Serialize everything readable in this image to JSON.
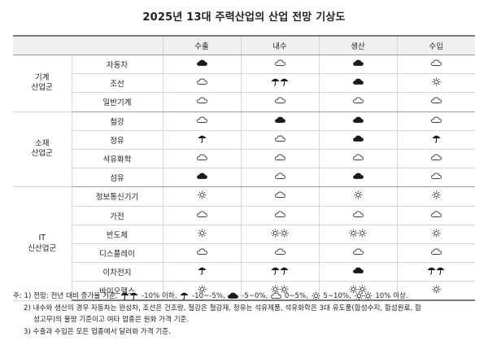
{
  "title": "2025년 13대 주력산업의 산업 전망 기상도",
  "columns": [
    "수출",
    "내수",
    "생산",
    "수입"
  ],
  "groups": [
    {
      "label_lines": [
        "기계",
        "산업군"
      ],
      "rows": [
        {
          "name": "자동차",
          "values": [
            "cloud_dark",
            "cloud",
            "cloud_dark",
            "cloud"
          ]
        },
        {
          "name": "조선",
          "values": [
            "cloud",
            "umbrella2",
            "cloud_dark",
            "sun"
          ]
        },
        {
          "name": "일반기계",
          "values": [
            "cloud",
            "cloud",
            "cloud",
            "cloud"
          ]
        }
      ]
    },
    {
      "label_lines": [
        "소재",
        "산업군"
      ],
      "rows": [
        {
          "name": "철강",
          "values": [
            "cloud",
            "cloud_dark",
            "cloud_dark",
            "cloud"
          ]
        },
        {
          "name": "정유",
          "values": [
            "umbrella",
            "cloud",
            "cloud_dark",
            "umbrella"
          ]
        },
        {
          "name": "석유화학",
          "values": [
            "cloud",
            "cloud",
            "cloud",
            "cloud"
          ]
        },
        {
          "name": "섬유",
          "values": [
            "cloud_dark",
            "cloud",
            "cloud_dark",
            "cloud"
          ]
        }
      ]
    },
    {
      "label_lines": [
        "IT",
        "신산업군"
      ],
      "rows": [
        {
          "name": "정보통신기기",
          "values": [
            "sun",
            "cloud",
            "sun",
            "sun"
          ]
        },
        {
          "name": "가전",
          "values": [
            "cloud",
            "cloud",
            "cloud",
            "cloud"
          ]
        },
        {
          "name": "반도체",
          "values": [
            "sun",
            "sun2",
            "sun2",
            "sun"
          ]
        },
        {
          "name": "디스플레이",
          "values": [
            "cloud",
            "cloud",
            "cloud",
            "cloud"
          ]
        },
        {
          "name": "이차전지",
          "values": [
            "umbrella",
            "umbrella2",
            "cloud_dark",
            "umbrella2"
          ]
        },
        {
          "name": "바이오헬스",
          "values": [
            "sun",
            "sun2",
            "sun2",
            "sun"
          ]
        }
      ]
    }
  ],
  "notes": {
    "note1_prefix": "주: 1) 전망: 전년 대비 증가율 기준,",
    "legend": [
      {
        "symbol": "umbrella2",
        "text": "-10% 이하,"
      },
      {
        "symbol": "umbrella",
        "text": "-10~-5%,"
      },
      {
        "symbol": "cloud_dark",
        "text": "-5~0%,"
      },
      {
        "symbol": "cloud",
        "text": "0~5%,"
      },
      {
        "symbol": "sun",
        "text": "5~10%,"
      },
      {
        "symbol": "sun2",
        "text": "10% 이상."
      }
    ],
    "note2_line1": "2) 내수와 생산의 경우 자동차는 완성차, 조선은 건조량, 철강은 철강재, 정유는 석유제품, 석유화학은 3대 유도품(합성수지, 합섬원료, 합",
    "note2_line2": "성고무)의 물량 기준이고 여타 업종은 원화 가격 기준.",
    "note3": "3) 수출과 수입은 모든 업종에서 달러화 가격 기준."
  }
}
